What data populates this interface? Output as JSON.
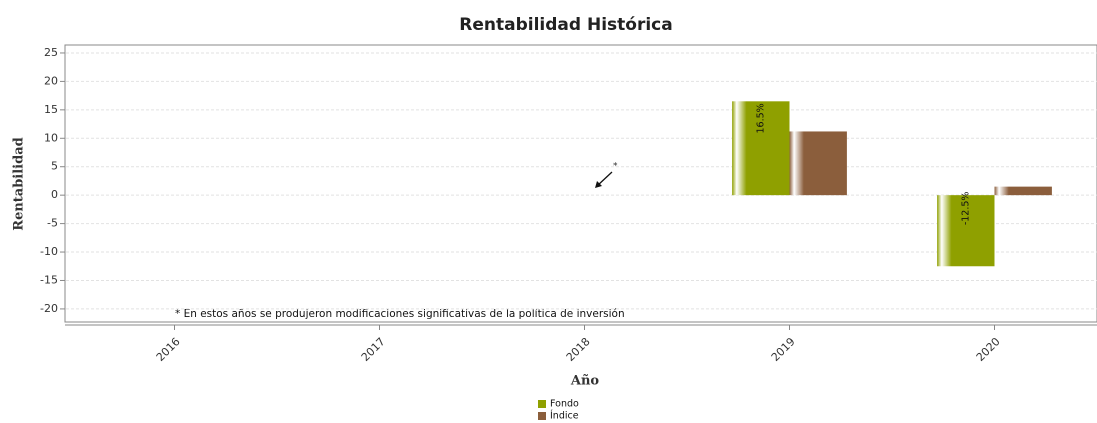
{
  "chart_data": {
    "type": "bar",
    "title": "Rentabilidad Histórica",
    "x_label": "Año",
    "y_label": "Rentabilidad",
    "categories": [
      "2016",
      "2017",
      "2018",
      "2019",
      "2020"
    ],
    "series": [
      {
        "name": "Fondo",
        "color": "#8fa000",
        "values": [
          null,
          null,
          null,
          16.5,
          -12.5
        ],
        "value_labels": [
          null,
          null,
          null,
          "16.5%",
          "-12.5%"
        ]
      },
      {
        "name": "Índice",
        "color": "#8b5e3c",
        "values": [
          null,
          null,
          null,
          11.2,
          1.5
        ]
      }
    ],
    "ylim": [
      -22.3,
      26.4
    ],
    "yticks": [
      -20,
      -15,
      -10,
      -5,
      0,
      5,
      10,
      15,
      20,
      25
    ],
    "grid": true,
    "annotation": "*",
    "note": "* En estos años se produjeron modificaciones significativas de la política de inversión",
    "legend": "bottom"
  }
}
